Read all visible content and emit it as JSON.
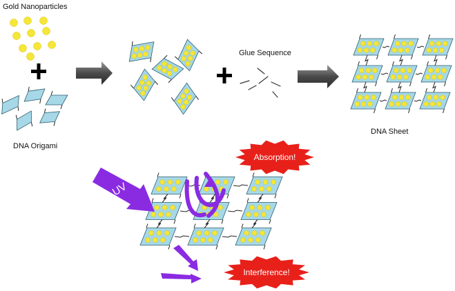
{
  "labels": {
    "gold_nanoparticles": "Gold Nanoparticles",
    "dna_origami": "DNA Origami",
    "glue_sequence": "Glue Sequence",
    "dna_sheet": "DNA Sheet",
    "uv": "UV",
    "absorption": "Absorption!",
    "interference": "Interference!"
  },
  "colors": {
    "gold": "#f5e63a",
    "origami_fill": "#a6d8e7",
    "origami_stroke": "#2c5b6e",
    "arrow_gray": "#555555",
    "uv_purple": "#8a2be2",
    "burst_red": "#e8201a",
    "text": "#111111"
  }
}
